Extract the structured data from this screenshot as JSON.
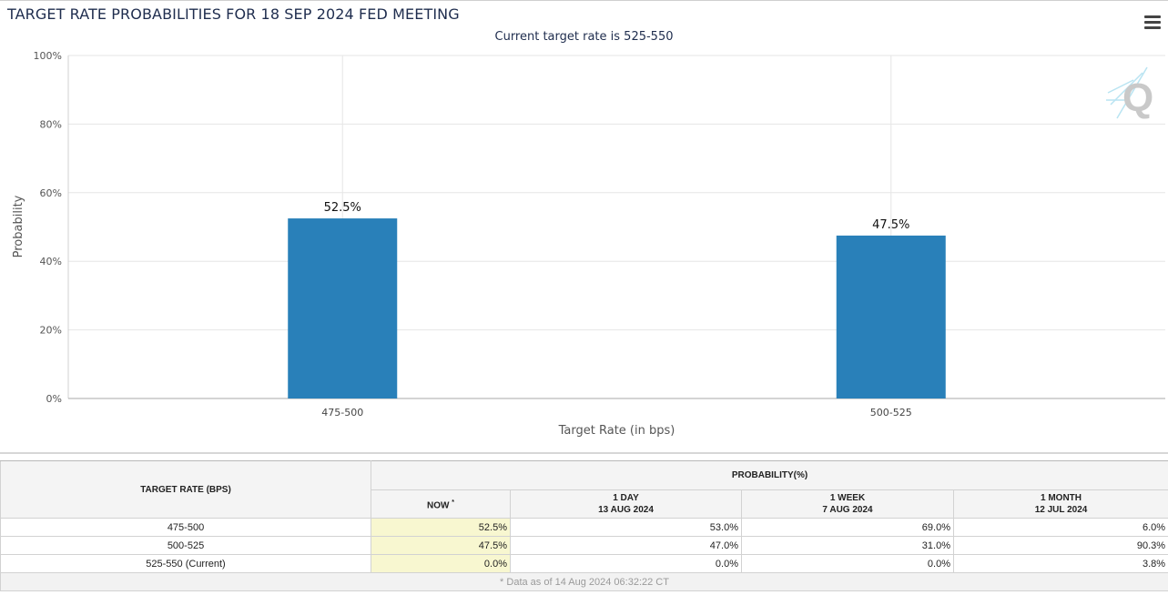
{
  "header": {
    "title": "TARGET RATE PROBABILITIES FOR 18 SEP 2024 FED MEETING",
    "subtitle": "Current target rate is 525-550",
    "menu_icon": "hamburger-menu-icon",
    "watermark_icon": "quikstrike-q-logo",
    "watermark_text": "Q"
  },
  "colors": {
    "bar": "#2980b9",
    "grid": "#e6e6e6",
    "now_highlight": "#f8f7d0"
  },
  "chart_data": {
    "type": "bar",
    "categories": [
      "475-500",
      "500-525"
    ],
    "values": [
      52.5,
      47.5
    ],
    "data_labels": [
      "52.5%",
      "47.5%"
    ],
    "title": "TARGET RATE PROBABILITIES FOR 18 SEP 2024 FED MEETING",
    "subtitle": "Current target rate is 525-550",
    "xlabel": "Target Rate (in bps)",
    "ylabel": "Probability",
    "ylim": [
      0,
      100
    ],
    "yticks": [
      0,
      20,
      40,
      60,
      80,
      100
    ],
    "ytick_labels": [
      "0%",
      "20%",
      "40%",
      "60%",
      "80%",
      "100%"
    ],
    "grid": true
  },
  "table": {
    "target_header": "TARGET RATE (BPS)",
    "prob_header": "PROBABILITY(%)",
    "columns": [
      {
        "line1": "NOW",
        "line2": "",
        "marker": "*"
      },
      {
        "line1": "1 DAY",
        "line2": "13 AUG 2024"
      },
      {
        "line1": "1 WEEK",
        "line2": "7 AUG 2024"
      },
      {
        "line1": "1 MONTH",
        "line2": "12 JUL 2024"
      }
    ],
    "rows": [
      {
        "rate": "475-500",
        "values": [
          "52.5%",
          "53.0%",
          "69.0%",
          "6.0%"
        ]
      },
      {
        "rate": "500-525",
        "values": [
          "47.5%",
          "47.0%",
          "31.0%",
          "90.3%"
        ]
      },
      {
        "rate": "525-550 (Current)",
        "values": [
          "0.0%",
          "0.0%",
          "0.0%",
          "3.8%"
        ]
      }
    ],
    "footnote": "* Data as of 14 Aug 2024 06:32:22 CT"
  }
}
